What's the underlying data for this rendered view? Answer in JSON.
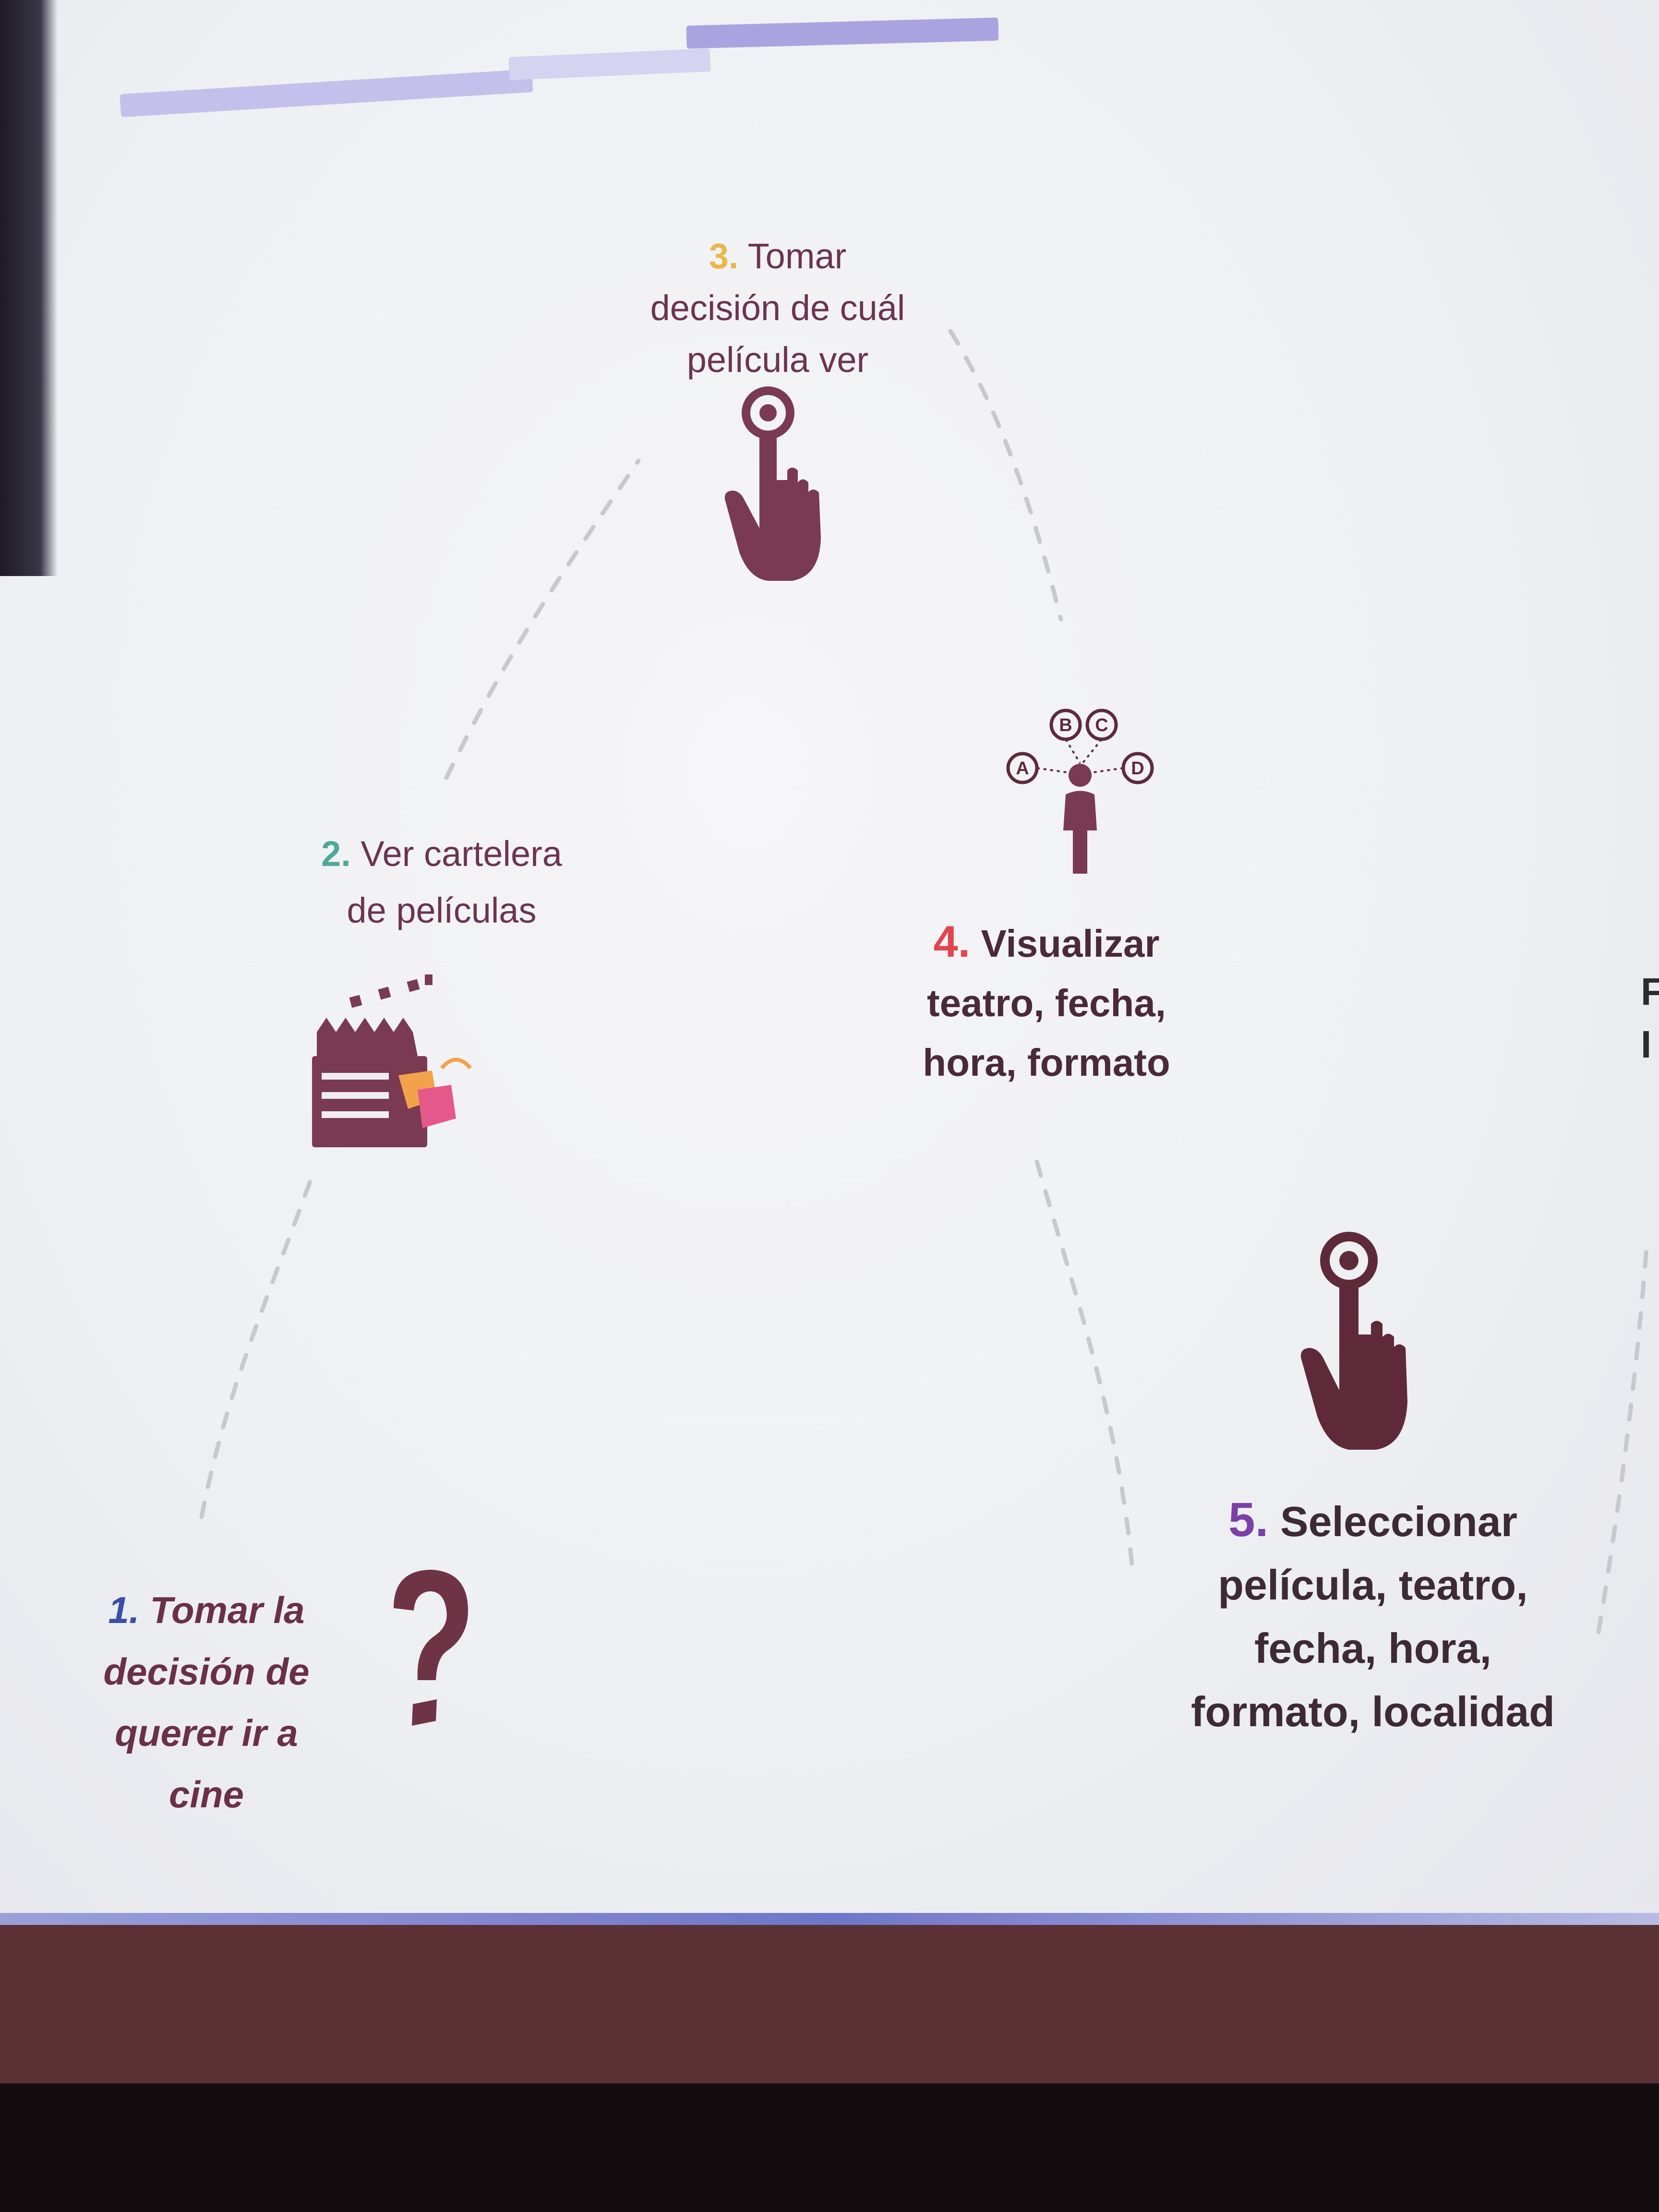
{
  "steps": [
    {
      "id": 1,
      "num": "1.",
      "lines": [
        "Tomar la",
        "decisión de",
        "querer ir a",
        "cine"
      ],
      "icon": "question-mark-icon"
    },
    {
      "id": 2,
      "num": "2.",
      "lines": [
        "Ver cartelera",
        "de películas"
      ],
      "icon": "clapperboard-icon"
    },
    {
      "id": 3,
      "num": "3.",
      "lines": [
        "Tomar",
        "decisión de cuál",
        "película ver"
      ],
      "icon": "pointing-hand-icon"
    },
    {
      "id": 4,
      "num": "4.",
      "lines": [
        "Visualizar",
        "teatro, fecha,",
        "hora, formato"
      ],
      "icon": "person-options-icon"
    },
    {
      "id": 5,
      "num": "5.",
      "lines": [
        "Seleccionar",
        "película, teatro,",
        "fecha, hora,",
        "formato, localidad"
      ],
      "icon": "pointing-hand-icon"
    }
  ],
  "option_labels": [
    "A",
    "B",
    "C",
    "D"
  ],
  "colors": {
    "icon": "#7a3a52",
    "icon_dark": "#5e2a3a",
    "num1": "#3a4fa8",
    "num2": "#4fa99a",
    "num3": "#e8b84a",
    "num4": "#e2454e",
    "num5": "#7b3fa8",
    "dashed_path": "#c8c8cf"
  },
  "edge_text": [
    "F",
    "I"
  ]
}
